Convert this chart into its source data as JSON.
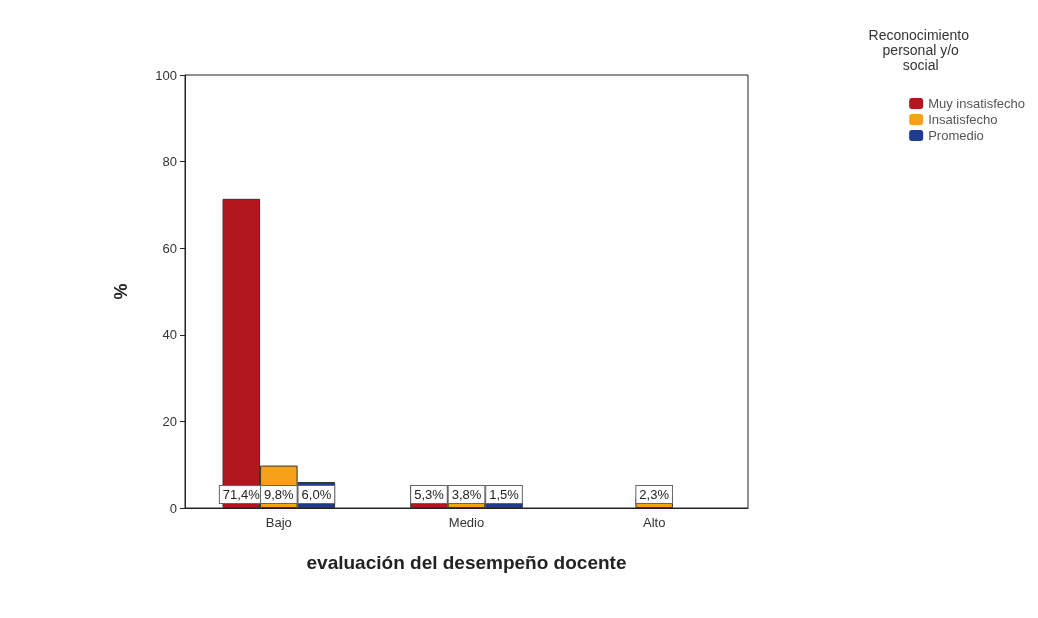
{
  "chart_data": {
    "type": "bar",
    "xlabel": "evaluación del desempeño docente",
    "ylabel": "%",
    "legend_title": "Reconocimiento personal y/o social",
    "legend": "top right",
    "categories": [
      "Bajo",
      "Medio",
      "Alto"
    ],
    "series": [
      {
        "name": "Muy insatisfecho",
        "color": "#b0171f",
        "values": [
          71.4,
          5.3,
          null
        ],
        "value_labels": [
          "71,4%",
          "5,3%",
          null
        ]
      },
      {
        "name": "Insatisfecho",
        "color": "#f5a21b",
        "values": [
          9.8,
          3.8,
          2.3
        ],
        "value_labels": [
          "9,8%",
          "3,8%",
          "2,3%"
        ]
      },
      {
        "name": "Promedio",
        "color": "#1f3a93",
        "values": [
          6.0,
          1.5,
          null
        ],
        "value_labels": [
          "6,0%",
          "1,5%",
          null
        ]
      }
    ],
    "ylim": [
      0,
      100
    ],
    "yticks": [
      0,
      20,
      40,
      60,
      80,
      100
    ],
    "grid": false
  }
}
